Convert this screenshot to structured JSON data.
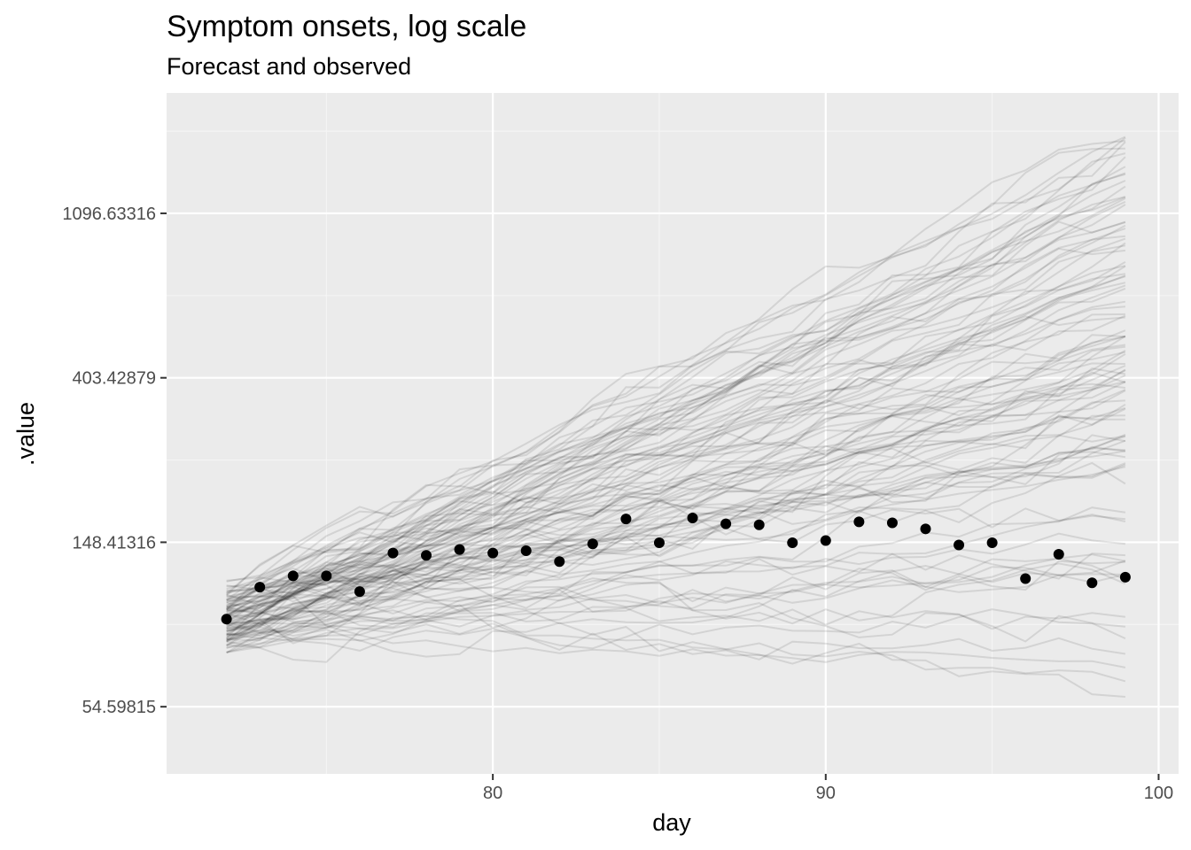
{
  "chart_data": {
    "type": "line",
    "title": "Symptom onsets, log scale",
    "subtitle": "Forecast and observed",
    "xlabel": "day",
    "ylabel": ".value",
    "x_scale": "linear",
    "y_scale": "log",
    "xlim": [
      70.2,
      100.6
    ],
    "ylim": [
      36.3,
      2280
    ],
    "x_ticks": [
      80,
      90,
      100
    ],
    "x_tick_labels": [
      "80",
      "90",
      "100"
    ],
    "y_ticks": [
      54.59815,
      148.41316,
      403.42879,
      1096.63316
    ],
    "y_tick_labels": [
      "54.59815",
      "148.41316",
      "403.42879",
      "1096.63316"
    ],
    "y_minor_ticks": [
      33.11545,
      90.01713,
      244.69193,
      665.14163,
      1808.04241
    ],
    "grid": true,
    "legend": "none",
    "colors": {
      "panel_background": "#ebebeb",
      "grid_major": "#ffffff",
      "grid_minor": "#f5f5f5",
      "forecast_lines": "#000000",
      "observed_points": "#000000"
    },
    "observed": {
      "x": [
        72,
        73,
        74,
        75,
        76,
        77,
        78,
        79,
        80,
        81,
        82,
        83,
        84,
        85,
        86,
        87,
        88,
        89,
        90,
        91,
        92,
        93,
        94,
        95,
        96,
        97,
        98,
        99
      ],
      "y": [
        93,
        113,
        121,
        121,
        110,
        139,
        137,
        142,
        139,
        141,
        132,
        147,
        171,
        148,
        172,
        166,
        165,
        148,
        150,
        168,
        167,
        161,
        146,
        148,
        119,
        138,
        116,
        120
      ]
    },
    "forecast": {
      "x_start": 72,
      "x_end": 99,
      "n_samples": 100,
      "start_range": [
        72,
        124
      ],
      "end_range": [
        38,
        1820
      ],
      "visible_end_labels": []
    }
  }
}
